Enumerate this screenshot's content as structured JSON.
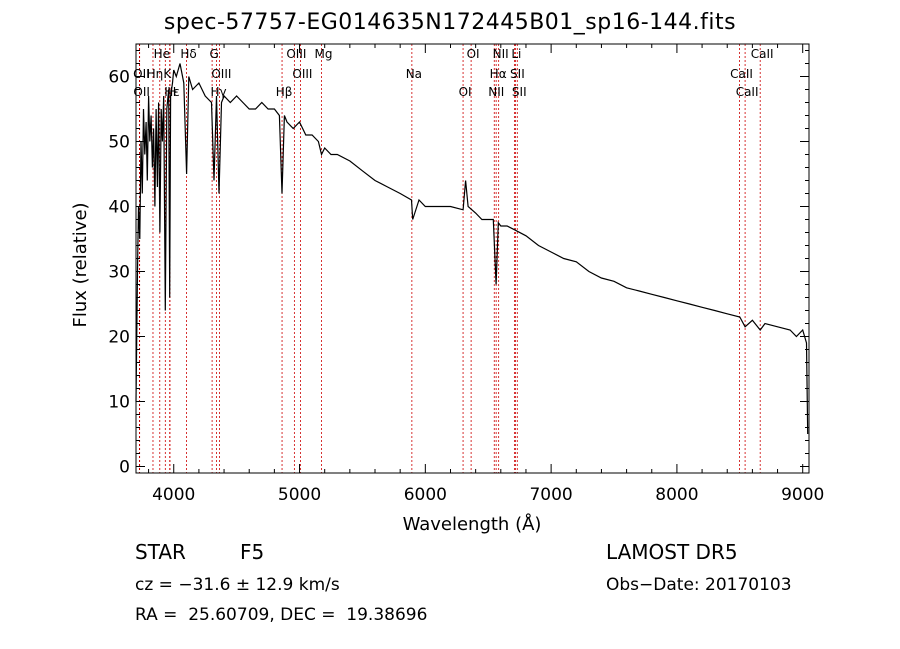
{
  "chart_data": {
    "type": "line",
    "title": "spec-57757-EG014635N172445B01_sp16-144.fits",
    "xlabel": "Wavelength (Å)",
    "ylabel": "Flux (relative)",
    "xlim": [
      3700,
      9050
    ],
    "ylim": [
      -1,
      65
    ],
    "x_ticks": [
      4000,
      5000,
      6000,
      7000,
      8000,
      9000
    ],
    "y_ticks": [
      0,
      10,
      20,
      30,
      40,
      50,
      60
    ],
    "grid": false,
    "series": [
      {
        "x": [
          3700,
          3705,
          3712,
          3720,
          3730,
          3740,
          3750,
          3760,
          3770,
          3780,
          3790,
          3800,
          3810,
          3820,
          3830,
          3840,
          3850,
          3860,
          3870,
          3880,
          3890,
          3900,
          3910,
          3920,
          3933,
          3945,
          3960,
          3968,
          3975,
          3990,
          4000,
          4020,
          4050,
          4080,
          4102,
          4120,
          4150,
          4200,
          4250,
          4300,
          4320,
          4340,
          4360,
          4380,
          4400,
          4450,
          4500,
          4550,
          4600,
          4650,
          4700,
          4750,
          4800,
          4840,
          4861,
          4880,
          4900,
          4950,
          5000,
          5050,
          5100,
          5150,
          5175,
          5200,
          5250,
          5300,
          5400,
          5500,
          5600,
          5700,
          5800,
          5890,
          5900,
          5950,
          6000,
          6100,
          6200,
          6300,
          6320,
          6340,
          6400,
          6450,
          6500,
          6540,
          6563,
          6580,
          6600,
          6650,
          6700,
          6800,
          6900,
          7000,
          7100,
          7200,
          7300,
          7400,
          7500,
          7600,
          7700,
          7800,
          7900,
          8000,
          8100,
          8200,
          8300,
          8400,
          8500,
          8542,
          8600,
          8662,
          8700,
          8800,
          8900,
          8950,
          9000,
          9030,
          9040
        ],
        "y": [
          10,
          18,
          30,
          40,
          35,
          50,
          42,
          55,
          48,
          53,
          44,
          57,
          50,
          54,
          46,
          52,
          40,
          55,
          43,
          56,
          36,
          55,
          50,
          57,
          24,
          55,
          58,
          26,
          57,
          59,
          61,
          60,
          62,
          59,
          45,
          60,
          58,
          59,
          57,
          56,
          44,
          57,
          42,
          56,
          57,
          56,
          57,
          56,
          55,
          55,
          56,
          55,
          55,
          54,
          42,
          54,
          53,
          52,
          53,
          51,
          51,
          50,
          48,
          49,
          48,
          48,
          47,
          45.5,
          44,
          43,
          42,
          41,
          38,
          41,
          40,
          40,
          40,
          39.5,
          44,
          40,
          39,
          38,
          38,
          38,
          28,
          37.5,
          37,
          37,
          36.5,
          35.5,
          34,
          33,
          32,
          31.5,
          30,
          29,
          28.5,
          27.5,
          27,
          26.5,
          26,
          25.5,
          25,
          24.5,
          24,
          23.5,
          23,
          21.5,
          22.5,
          21,
          22,
          21.5,
          21,
          20,
          21,
          19,
          5
        ]
      }
    ],
    "line_markers": [
      {
        "label": "Hδ",
        "wavelength": 4102
      },
      {
        "label": "K",
        "wavelength": 3933
      },
      {
        "label": "H",
        "wavelength": 3968
      },
      {
        "label": "G",
        "wavelength": 4305
      },
      {
        "label": "OIII",
        "wavelength": 4363
      },
      {
        "label": "Hγ",
        "wavelength": 4340
      },
      {
        "label": "OIII",
        "wavelength": 4959
      },
      {
        "label": "OIII",
        "wavelength": 5007
      },
      {
        "label": "Hβ",
        "wavelength": 4861
      },
      {
        "label": "Mg",
        "wavelength": 5175
      },
      {
        "label": "Na",
        "wavelength": 5893
      },
      {
        "label": "OI",
        "wavelength": 6300
      },
      {
        "label": "OI",
        "wavelength": 6364
      },
      {
        "label": "Hα",
        "wavelength": 6563
      },
      {
        "label": "NII",
        "wavelength": 6548
      },
      {
        "label": "NII",
        "wavelength": 6583
      },
      {
        "label": "SII",
        "wavelength": 6716
      },
      {
        "label": "SII",
        "wavelength": 6731
      },
      {
        "label": "Li",
        "wavelength": 6708
      },
      {
        "label": "CaII",
        "wavelength": 8498
      },
      {
        "label": "CaII",
        "wavelength": 8542
      },
      {
        "label": "CaII",
        "wavelength": 8662
      },
      {
        "label": "OII",
        "wavelength": 3727
      },
      {
        "label": "OII",
        "wavelength": 3729
      },
      {
        "label": "He",
        "wavelength": 3889
      },
      {
        "label": "Hη",
        "wavelength": 3835
      },
      {
        "label": "Hε",
        "wavelength": 3970
      }
    ],
    "line_color": "#000000",
    "marker_color": "#cc0000"
  },
  "labels": {
    "star_label": "STAR",
    "star_type": "F5",
    "survey": "LAMOST DR5",
    "cz": "cz = −31.6 ± 12.9 km/s",
    "obs_date": "Obs−Date: 20170103",
    "radec": "RA =  25.60709, DEC =  19.38696"
  }
}
